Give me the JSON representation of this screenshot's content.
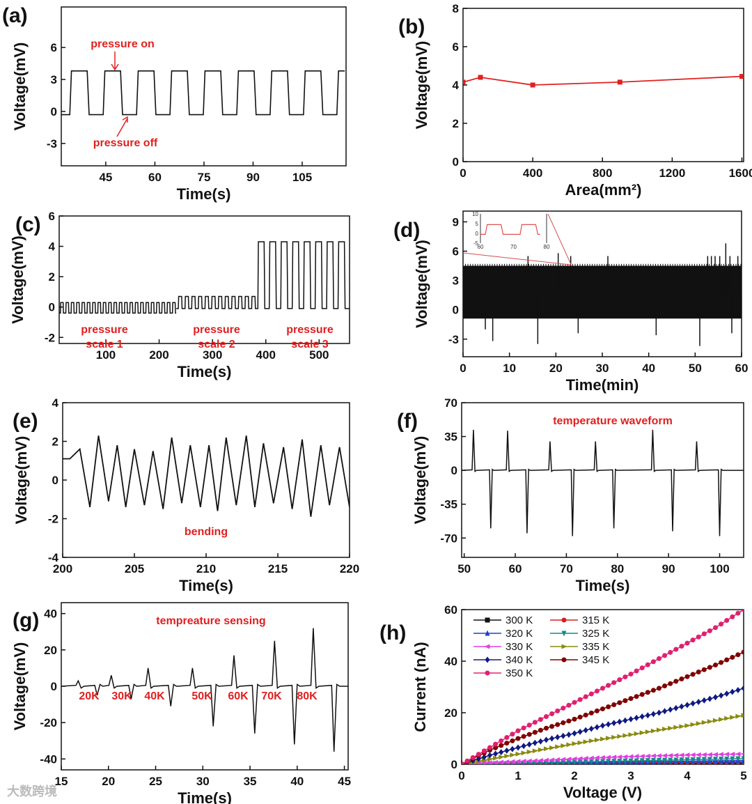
{
  "watermark": "大数跨境",
  "chart_data": [
    {
      "panel": "(a)",
      "type": "line",
      "xlabel": "Time(s)",
      "ylabel": "Voltage(mV)",
      "xlim": [
        31.4,
        118.4
      ],
      "ylim": [
        -5.1,
        9.8
      ],
      "xticks": [
        45,
        60,
        75,
        90,
        105
      ],
      "yticks": [
        -3,
        0,
        3,
        6
      ],
      "signal": {
        "kind": "square_wave",
        "t_range": [
          31.5,
          118
        ],
        "first_rise": 34,
        "period": 10.2,
        "duty": 0.52,
        "low": -0.3,
        "high": 3.8
      },
      "annotations": [
        "pressure on",
        "pressure off"
      ],
      "color": "#111111"
    },
    {
      "panel": "(b)",
      "type": "line",
      "xlabel": "Area(mm²)",
      "ylabel": "Voltage(mV)",
      "xlim": [
        0,
        1610
      ],
      "ylim": [
        0,
        8
      ],
      "xticks": [
        0,
        400,
        800,
        1200,
        1600
      ],
      "yticks": [
        0,
        2,
        4,
        6,
        8
      ],
      "x": [
        0,
        100,
        400,
        900,
        1600
      ],
      "y": [
        4.15,
        4.4,
        4.0,
        4.15,
        4.45
      ],
      "color": "#e02020"
    },
    {
      "panel": "(c)",
      "type": "line",
      "xlabel": "Time(s)",
      "ylabel": "Voltage(mV)",
      "xlim": [
        12.6,
        557
      ],
      "ylim": [
        -2.4,
        6
      ],
      "xticks": [
        100,
        200,
        300,
        400,
        500
      ],
      "yticks": [
        -2,
        0,
        2,
        4,
        6
      ],
      "segments": [
        {
          "label": "pressure scale 1",
          "t_range": [
            13,
            232
          ],
          "first_rise": 15,
          "period": 10,
          "duty": 0.5,
          "low": -0.4,
          "high": 0.3
        },
        {
          "label": "pressure scale 2",
          "t_range": [
            232,
            382
          ],
          "first_rise": 236,
          "period": 12.5,
          "duty": 0.5,
          "low": -0.1,
          "high": 0.7
        },
        {
          "label": "pressure scale 3",
          "t_range": [
            382,
            557
          ],
          "first_rise": 385,
          "period": 21.5,
          "duty": 0.55,
          "low": -0.1,
          "high": 4.3
        }
      ],
      "annotations": [
        [
          "pressure",
          "scale 1"
        ],
        [
          "pressure",
          "scale 2"
        ],
        [
          "pressure",
          "scale 3"
        ]
      ],
      "color": "#111111"
    },
    {
      "panel": "(d)",
      "type": "line",
      "xlabel": "Time(min)",
      "ylabel": "Voltage(mV)",
      "xlim": [
        0,
        60
      ],
      "ylim": [
        -4.8,
        10.1
      ],
      "xticks": [
        0,
        10,
        20,
        30,
        40,
        50,
        60
      ],
      "yticks": [
        -3,
        0,
        3,
        6,
        9
      ],
      "band": {
        "low": -0.9,
        "high": 4.5
      },
      "spikes_up": [
        [
          14,
          5.5
        ],
        [
          20.5,
          5.8
        ],
        [
          23.2,
          5.5
        ],
        [
          31.2,
          5.5
        ],
        [
          52.7,
          5.5
        ],
        [
          53.5,
          5.5
        ],
        [
          54.3,
          5.5
        ],
        [
          55.3,
          5.5
        ],
        [
          56.6,
          6.8
        ],
        [
          57.5,
          5.5
        ],
        [
          59.2,
          5.5
        ]
      ],
      "spikes_down": [
        [
          4.8,
          -2.0
        ],
        [
          6.4,
          -3.2
        ],
        [
          16.1,
          -3.5
        ],
        [
          24.8,
          -2.4
        ],
        [
          41.6,
          -2.6
        ],
        [
          51.0,
          -3.7
        ],
        [
          57.9,
          -2.4
        ]
      ],
      "inset": {
        "xlim": [
          60,
          80
        ],
        "ylim": [
          -5,
          10
        ],
        "xticks": [
          60,
          70,
          80
        ],
        "yticks": [
          -5,
          0,
          5,
          10
        ],
        "signal": {
          "kind": "square_wave",
          "t_range": [
            60,
            78
          ],
          "first_rise": 61.5,
          "period": 10.5,
          "duty": 0.45,
          "low": -0.5,
          "high": 4.5
        },
        "color": "#e05050"
      },
      "color": "#111111"
    },
    {
      "panel": "(e)",
      "type": "line",
      "xlabel": "Time(s)",
      "ylabel": "Voltage(mV)",
      "xlim": [
        200,
        220
      ],
      "ylim": [
        -4,
        4
      ],
      "xticks": [
        200,
        205,
        210,
        215,
        220
      ],
      "yticks": [
        -4,
        -2,
        0,
        2,
        4
      ],
      "x": [
        200,
        200.5,
        201.2,
        201.9,
        202.5,
        203.2,
        203.8,
        204.4,
        205,
        205.7,
        206.3,
        207,
        207.6,
        208.3,
        208.9,
        209.6,
        210.2,
        210.8,
        211.4,
        212.1,
        212.8,
        213.4,
        214,
        214.7,
        215.4,
        216,
        216.7,
        217.3,
        218,
        218.6,
        219.3,
        220
      ],
      "y": [
        1.1,
        1.1,
        1.6,
        -1.4,
        2.3,
        -1.1,
        1.8,
        -1.4,
        1.6,
        -1.3,
        1.5,
        -1.5,
        2.2,
        -1.2,
        1.8,
        -1.4,
        1.8,
        -1.6,
        2.2,
        -1.3,
        2.3,
        -1.4,
        1.9,
        -1.2,
        1.7,
        -1.5,
        2.1,
        -1.9,
        1.8,
        -1.3,
        1.7,
        -1.4
      ],
      "annotations": [
        "bending"
      ],
      "color": "#111111"
    },
    {
      "panel": "(f)",
      "type": "line",
      "xlabel": "Time(s)",
      "ylabel": "Voltage(mV)",
      "xlim": [
        49.5,
        104.7
      ],
      "ylim": [
        -90,
        70
      ],
      "xticks": [
        50,
        60,
        70,
        80,
        90,
        100
      ],
      "yticks": [
        -70,
        -35,
        0,
        35,
        70
      ],
      "spikes": [
        [
          51.8,
          42
        ],
        [
          55.2,
          -60
        ],
        [
          58.5,
          41
        ],
        [
          62.3,
          -65
        ],
        [
          66.8,
          30
        ],
        [
          71.2,
          -68
        ],
        [
          75.7,
          30
        ],
        [
          79.3,
          -60
        ],
        [
          86.9,
          42
        ],
        [
          90.8,
          -63
        ],
        [
          95.5,
          30
        ],
        [
          100,
          -68
        ]
      ],
      "annotations": [
        "temperature waveform"
      ],
      "color": "#111111"
    },
    {
      "panel": "(g)",
      "type": "line",
      "xlabel": "Time(s)",
      "ylabel": "Voltage(mV)",
      "xlim": [
        15,
        45.4
      ],
      "ylim": [
        -46,
        46
      ],
      "xticks": [
        15,
        20,
        25,
        30,
        35,
        40,
        45
      ],
      "yticks": [
        -40,
        -20,
        0,
        20,
        40
      ],
      "spikes": [
        [
          16.8,
          3
        ],
        [
          18.8,
          -5
        ],
        [
          20.3,
          6
        ],
        [
          22.4,
          -7
        ],
        [
          24.2,
          10
        ],
        [
          26.6,
          -11
        ],
        [
          28.9,
          10
        ],
        [
          31.1,
          -22
        ],
        [
          33.3,
          17
        ],
        [
          35.5,
          -26
        ],
        [
          37.6,
          25
        ],
        [
          39.7,
          -32
        ],
        [
          41.7,
          32
        ],
        [
          43.9,
          -36
        ]
      ],
      "annotations": [
        "tempreature sensing",
        "20K",
        "30K",
        "40K",
        "50K",
        "60K",
        "70K",
        "80K"
      ],
      "color": "#111111"
    },
    {
      "panel": "(h)",
      "type": "line",
      "xlabel": "Voltage (V)",
      "ylabel": "Current (nA)",
      "xlim": [
        0,
        5
      ],
      "ylim": [
        0,
        60
      ],
      "xticks": [
        0,
        1,
        2,
        3,
        4,
        5
      ],
      "yticks": [
        0,
        20,
        40,
        60
      ],
      "legend_position": "top-left",
      "x": [
        0,
        0.5,
        1,
        1.5,
        2,
        2.5,
        3,
        3.5,
        4,
        4.5,
        5
      ],
      "series": [
        {
          "name": "300 K",
          "color": "#111111",
          "marker": "square",
          "values": [
            0,
            0.05,
            0.1,
            0.15,
            0.2,
            0.25,
            0.3,
            0.35,
            0.4,
            0.45,
            0.5
          ]
        },
        {
          "name": "315 K",
          "color": "#d42020",
          "marker": "circle",
          "values": [
            0,
            0.09,
            0.18,
            0.27,
            0.36,
            0.45,
            0.54,
            0.63,
            0.72,
            0.81,
            0.9
          ]
        },
        {
          "name": "320 K",
          "color": "#1a3fd4",
          "marker": "triangle-up",
          "values": [
            0,
            0.15,
            0.3,
            0.45,
            0.6,
            0.75,
            0.9,
            1.05,
            1.2,
            1.35,
            1.5
          ]
        },
        {
          "name": "325 K",
          "color": "#148a8a",
          "marker": "triangle-down",
          "values": [
            0,
            0.22,
            0.44,
            0.66,
            0.88,
            1.1,
            1.32,
            1.54,
            1.76,
            1.98,
            2.2
          ]
        },
        {
          "name": "330 K",
          "color": "#e040e0",
          "marker": "triangle-left",
          "values": [
            0,
            0.6,
            1.1,
            1.6,
            2.1,
            2.6,
            3,
            3.3,
            3.6,
            3.8,
            4
          ]
        },
        {
          "name": "335 K",
          "color": "#8a8a10",
          "marker": "triangle-right",
          "values": [
            0,
            2,
            4,
            6,
            8,
            9.8,
            11.5,
            13.3,
            15,
            17,
            19
          ]
        },
        {
          "name": "340 K",
          "color": "#101a80",
          "marker": "diamond",
          "values": [
            0,
            3.5,
            6.5,
            9.5,
            12,
            15,
            17.5,
            20,
            23,
            26,
            29.5
          ]
        },
        {
          "name": "345 K",
          "color": "#800000",
          "marker": "circle",
          "values": [
            0,
            5.5,
            10,
            14,
            17.5,
            21.5,
            25.5,
            29.5,
            34,
            38.5,
            43.5
          ]
        },
        {
          "name": "350 K",
          "color": "#e0206f",
          "marker": "circle",
          "values": [
            0,
            6.5,
            13,
            18.5,
            24,
            29.5,
            35,
            41,
            47,
            53,
            60
          ]
        }
      ]
    }
  ]
}
